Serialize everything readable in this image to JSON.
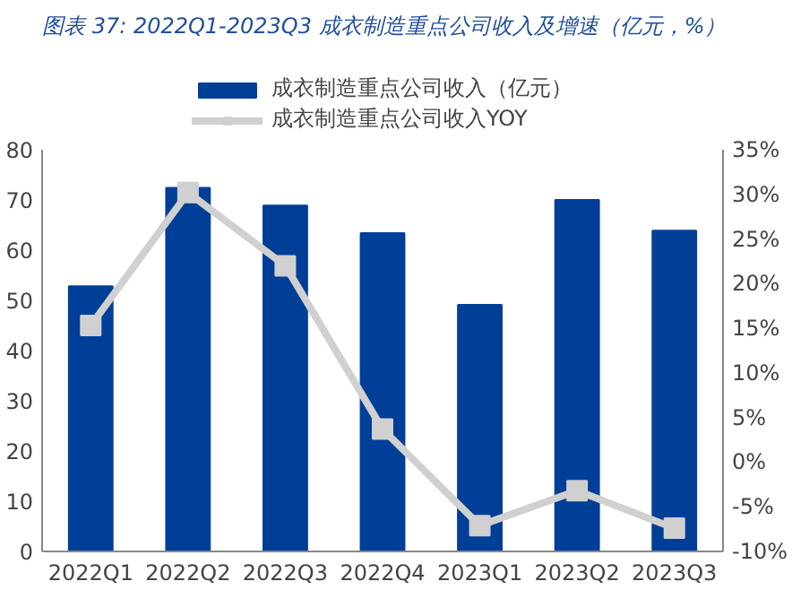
{
  "chart_data": {
    "type": "bar",
    "title": "图表 37:  2022Q1-2023Q3 成衣制造重点公司收入及增速（亿元，%）",
    "categories": [
      "2022Q1",
      "2022Q2",
      "2022Q3",
      "2022Q4",
      "2023Q1",
      "2023Q2",
      "2023Q3"
    ],
    "series": [
      {
        "name": "成衣制造重点公司收入（亿元）",
        "color": "#003f98",
        "values": [
          52.8,
          72.4,
          68.9,
          63.4,
          49.1,
          70.0,
          63.9
        ]
      },
      {
        "name": "成衣制造重点公司收入YOY",
        "type": "line",
        "axis": "y2",
        "color": "#d0d0d0",
        "marker": "square",
        "values": [
          15.3,
          30.2,
          22.0,
          3.7,
          -7.1,
          -3.2,
          -7.4
        ]
      }
    ],
    "ylim": [
      0,
      80
    ],
    "yticks": [
      0,
      10,
      20,
      30,
      40,
      50,
      60,
      70,
      80
    ],
    "y2lim": [
      -10,
      35
    ],
    "y2ticks": [
      {
        "value": -10,
        "label": "-10%"
      },
      {
        "value": -5,
        "label": "-5%"
      },
      {
        "value": 0,
        "label": "0%"
      },
      {
        "value": 5,
        "label": "5%"
      },
      {
        "value": 10,
        "label": "10%"
      },
      {
        "value": 15,
        "label": "15%"
      },
      {
        "value": 20,
        "label": "20%"
      },
      {
        "value": 25,
        "label": "25%"
      },
      {
        "value": 30,
        "label": "30%"
      },
      {
        "value": 35,
        "label": "35%"
      }
    ],
    "legend": "top",
    "grid": false
  }
}
